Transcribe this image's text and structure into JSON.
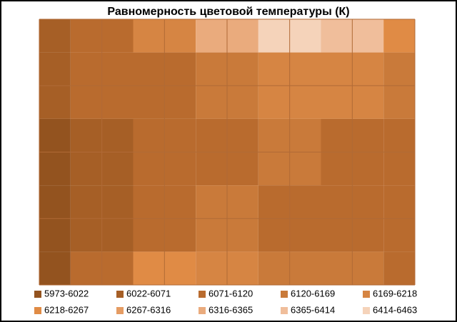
{
  "chart_data": {
    "type": "contour",
    "title": "Равномерность  цветовой температуры (К)",
    "z": [
      [
        6060,
        6100,
        6200,
        6350,
        6450,
        6400,
        6250
      ],
      [
        6050,
        6090,
        6110,
        6150,
        6200,
        6180,
        6130
      ],
      [
        6000,
        6060,
        6100,
        6090,
        6140,
        6110,
        6080
      ],
      [
        5990,
        6070,
        6110,
        6120,
        6100,
        6090,
        6110
      ],
      [
        5980,
        6080,
        6250,
        6200,
        6160,
        6130,
        6100
      ]
    ],
    "bands": [
      {
        "label": "5973-6022",
        "min": 5973,
        "max": 6022,
        "color": "#93531f"
      },
      {
        "label": "6022-6071",
        "min": 6022,
        "max": 6071,
        "color": "#a65f26"
      },
      {
        "label": "6071-6120",
        "min": 6071,
        "max": 6120,
        "color": "#b96b2e"
      },
      {
        "label": "6120-6169",
        "min": 6120,
        "max": 6169,
        "color": "#c97a3a"
      },
      {
        "label": "6169-6218",
        "min": 6169,
        "max": 6218,
        "color": "#d68543"
      },
      {
        "label": "6218-6267",
        "min": 6218,
        "max": 6267,
        "color": "#e08b45"
      },
      {
        "label": "6267-6316",
        "min": 6267,
        "max": 6316,
        "color": "#e59c63"
      },
      {
        "label": "6316-6365",
        "min": 6316,
        "max": 6365,
        "color": "#eaab7d"
      },
      {
        "label": "6365-6414",
        "min": 6365,
        "max": 6414,
        "color": "#f0be9b"
      },
      {
        "label": "6414-6463",
        "min": 6414,
        "max": 6463,
        "color": "#f5d3ba"
      }
    ],
    "grid": true
  }
}
